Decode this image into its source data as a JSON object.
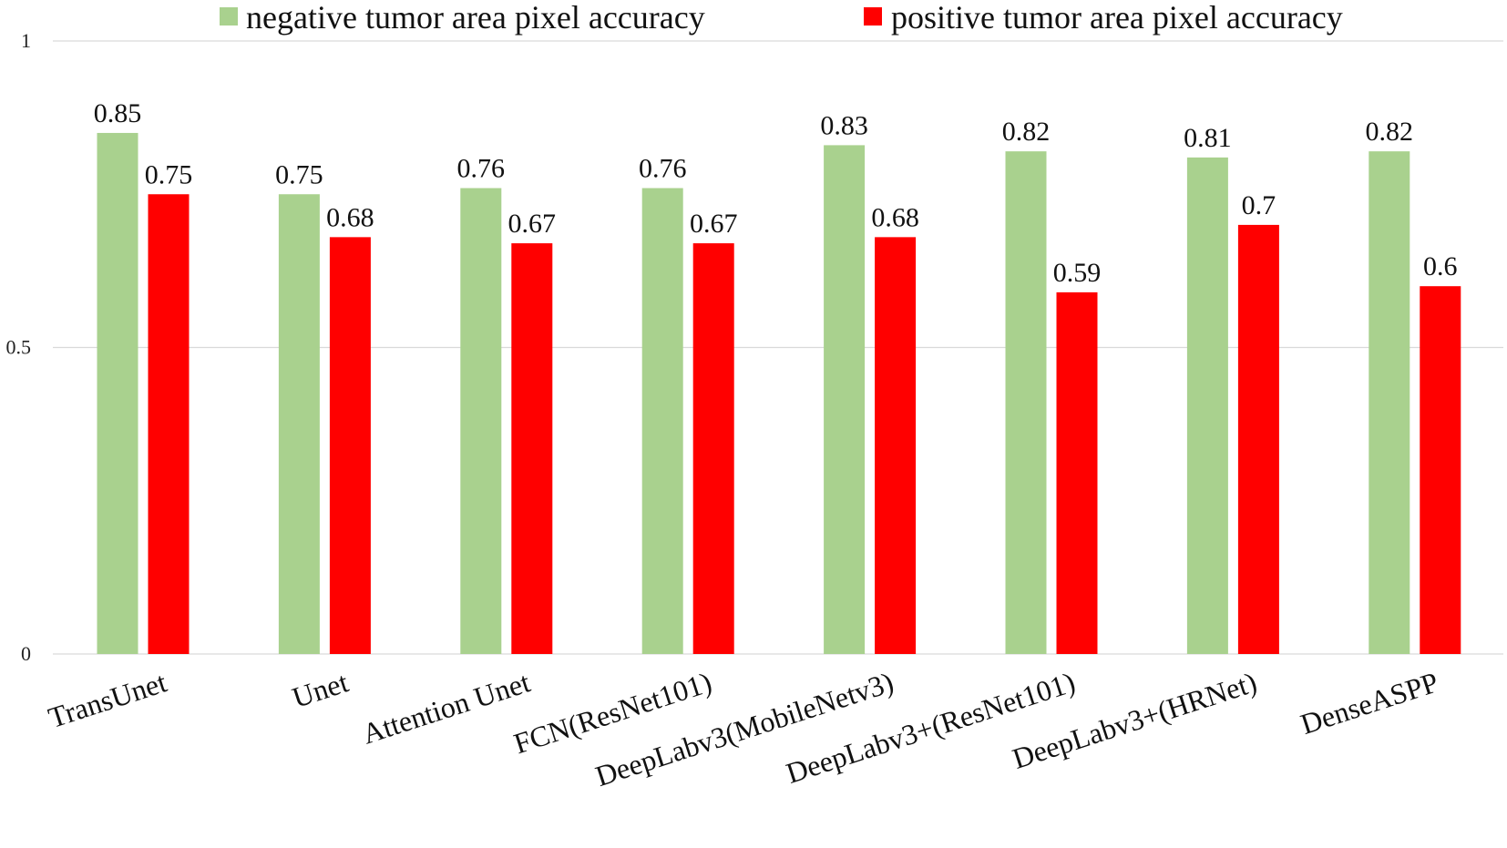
{
  "chart_data": {
    "type": "bar",
    "title": "",
    "xlabel": "",
    "ylabel": "",
    "ylim": [
      0,
      1
    ],
    "yticks": [
      0,
      0.5,
      1
    ],
    "ytick_labels": [
      "0",
      "0.5",
      "1"
    ],
    "grid": true,
    "legend_position": "top",
    "categories": [
      "TransUnet",
      "Unet",
      "Attention Unet",
      "FCN(ResNet101)",
      "DeepLabv3(MobileNetv3)",
      "DeepLabv3+(ResNet101)",
      "DeepLabv3+(HRNet)",
      "DenseASPP"
    ],
    "series": [
      {
        "name": "negative tumor area pixel accuracy",
        "color": "#a9d18e",
        "values": [
          0.85,
          0.75,
          0.76,
          0.76,
          0.83,
          0.82,
          0.81,
          0.82
        ],
        "labels": [
          "0.85",
          "0.75",
          "0.76",
          "0.76",
          "0.83",
          "0.82",
          "0.81",
          "0.82"
        ]
      },
      {
        "name": "positive tumor area pixel accuracy",
        "color": "#ff0000",
        "values": [
          0.75,
          0.68,
          0.67,
          0.67,
          0.68,
          0.59,
          0.7,
          0.6
        ],
        "labels": [
          "0.75",
          "0.68",
          "0.67",
          "0.67",
          "0.68",
          "0.59",
          "0.7",
          "0.6"
        ]
      }
    ]
  }
}
